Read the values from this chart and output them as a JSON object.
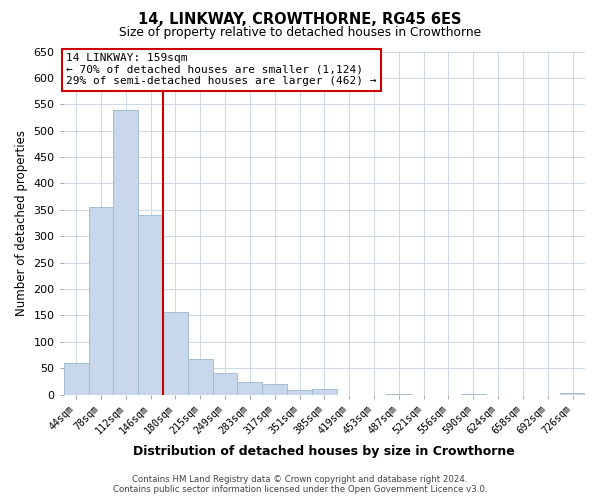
{
  "title": "14, LINKWAY, CROWTHORNE, RG45 6ES",
  "subtitle": "Size of property relative to detached houses in Crowthorne",
  "xlabel": "Distribution of detached houses by size in Crowthorne",
  "ylabel": "Number of detached properties",
  "bin_labels": [
    "44sqm",
    "78sqm",
    "112sqm",
    "146sqm",
    "180sqm",
    "215sqm",
    "249sqm",
    "283sqm",
    "317sqm",
    "351sqm",
    "385sqm",
    "419sqm",
    "453sqm",
    "487sqm",
    "521sqm",
    "556sqm",
    "590sqm",
    "624sqm",
    "658sqm",
    "692sqm",
    "726sqm"
  ],
  "bar_heights": [
    60,
    355,
    540,
    340,
    157,
    68,
    40,
    24,
    20,
    8,
    10,
    0,
    0,
    2,
    0,
    0,
    1,
    0,
    0,
    0,
    3
  ],
  "bar_color": "#c8d8ea",
  "bar_edgecolor": "#9ab8d0",
  "vline_color": "#cc0000",
  "vline_x": 3.5,
  "annotation_line1": "14 LINKWAY: 159sqm",
  "annotation_line2": "← 70% of detached houses are smaller (1,124)",
  "annotation_line3": "29% of semi-detached houses are larger (462) →",
  "box_edgecolor": "#cc0000",
  "ylim": [
    0,
    650
  ],
  "yticks": [
    0,
    50,
    100,
    150,
    200,
    250,
    300,
    350,
    400,
    450,
    500,
    550,
    600,
    650
  ],
  "footer_line1": "Contains HM Land Registry data © Crown copyright and database right 2024.",
  "footer_line2": "Contains public sector information licensed under the Open Government Licence v3.0.",
  "background_color": "#ffffff",
  "grid_color": "#ccd8e8"
}
